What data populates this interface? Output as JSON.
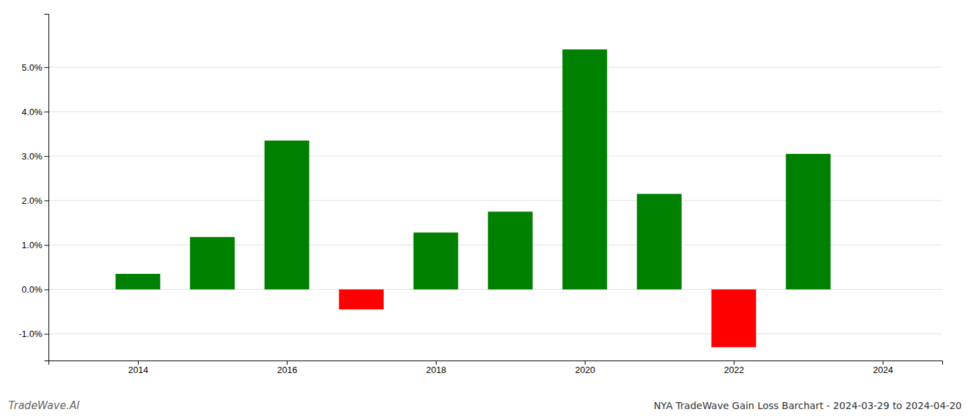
{
  "chart_data": {
    "type": "bar",
    "title": "NYA TradeWave Gain Loss Barchart - 2024-03-29 to 2024-04-20",
    "annotations": [
      {
        "text": "TradeWave.AI"
      }
    ],
    "x": [
      2014,
      2015,
      2016,
      2017,
      2018,
      2019,
      2020,
      2021,
      2022,
      2023
    ],
    "values": [
      0.0035,
      0.0118,
      0.0335,
      -0.0045,
      0.0128,
      0.0175,
      0.054,
      0.0215,
      -0.013,
      0.0305
    ],
    "colors": [
      "#008000",
      "#008000",
      "#008000",
      "#ff0000",
      "#008000",
      "#008000",
      "#008000",
      "#008000",
      "#ff0000",
      "#008000"
    ],
    "xlim": [
      2012.8,
      2024.8
    ],
    "xticks": [
      2014,
      2016,
      2018,
      2020,
      2022,
      2024
    ],
    "ylim": [
      -0.016,
      0.062
    ],
    "yticks": [
      {
        "value": -0.01,
        "label": "-1.0%"
      },
      {
        "value": 0.0,
        "label": "0.0%"
      },
      {
        "value": 0.01,
        "label": "1.0%"
      },
      {
        "value": 0.02,
        "label": "2.0%"
      },
      {
        "value": 0.03,
        "label": "3.0%"
      },
      {
        "value": 0.04,
        "label": "4.0%"
      },
      {
        "value": 0.05,
        "label": "5.0%"
      }
    ],
    "grid": true
  }
}
